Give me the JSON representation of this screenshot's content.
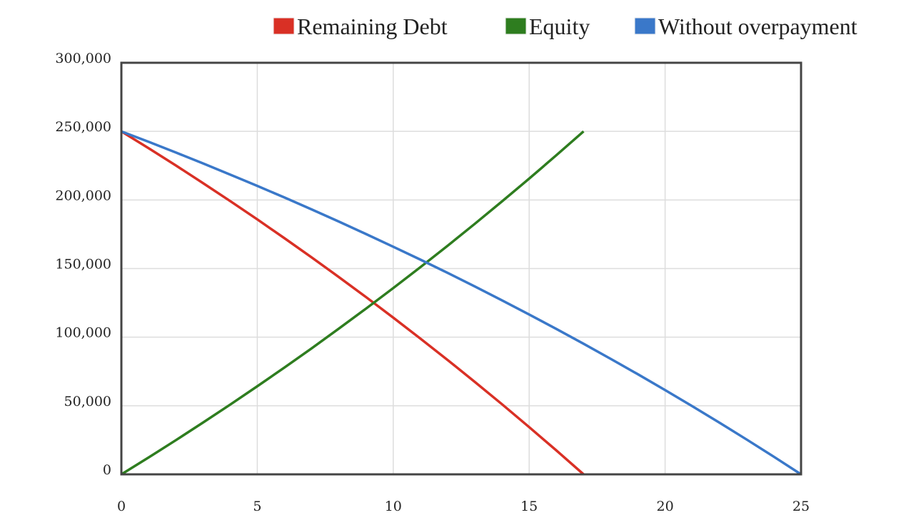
{
  "chart_data": {
    "type": "line",
    "title": "",
    "xlabel": "",
    "ylabel": "",
    "xlim": [
      0,
      25
    ],
    "ylim": [
      0,
      300000
    ],
    "grid": true,
    "legend_placement": "top-right",
    "x_ticks": [
      "0",
      "5",
      "10",
      "15",
      "20",
      "25"
    ],
    "y_ticks": [
      "0",
      "50,000",
      "100,000",
      "150,000",
      "200,000",
      "250,000",
      "300,000"
    ],
    "series": [
      {
        "name": "Remaining Debt",
        "color": "#d93025",
        "x": [
          0,
          1,
          2,
          3,
          4,
          5,
          6,
          7,
          8,
          9,
          10,
          11,
          12,
          13,
          14,
          15,
          16,
          17
        ],
        "y": [
          250000,
          237711,
          225159,
          212325,
          199212,
          185809,
          172108,
          158109,
          143801,
          129180,
          114236,
          98961,
          83352,
          67402,
          51094,
          34436,
          17408,
          0
        ]
      },
      {
        "name": "Equity",
        "color": "#2e7d1f",
        "x": [
          0,
          1,
          2,
          3,
          4,
          5,
          6,
          7,
          8,
          9,
          10,
          11,
          12,
          13,
          14,
          15,
          16,
          17
        ],
        "y": [
          0,
          12289,
          24841,
          37675,
          50788,
          64191,
          77892,
          91891,
          106199,
          120820,
          135764,
          151039,
          166648,
          182598,
          198906,
          215564,
          232592,
          250000
        ]
      },
      {
        "name": "Without overpayment",
        "color": "#3a78c9",
        "x": [
          0,
          1,
          2,
          3,
          4,
          5,
          6,
          7,
          8,
          9,
          10,
          11,
          12,
          13,
          14,
          15,
          16,
          17,
          18,
          19,
          20,
          21,
          22,
          23,
          24,
          25
        ],
        "y": [
          250000,
          242392,
          234618,
          226672,
          218552,
          210252,
          201770,
          193100,
          184240,
          175187,
          165933,
          156475,
          146810,
          136933,
          126836,
          116520,
          105976,
          95198,
          84187,
          72932,
          61426,
          49672,
          37655,
          25376,
          12826,
          0
        ]
      }
    ]
  }
}
